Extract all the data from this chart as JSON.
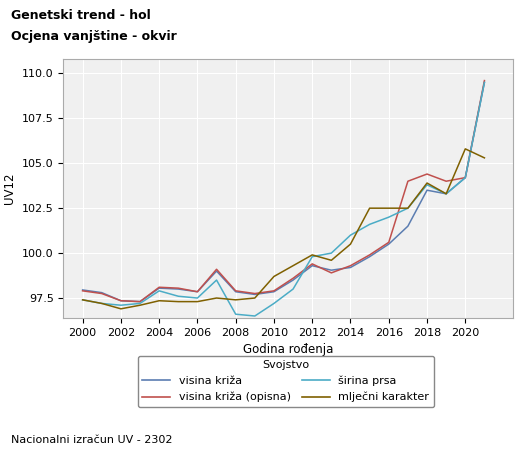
{
  "title_line1": "Genetski trend - hol",
  "title_line2": "Ocjena vanjštine - okvir",
  "xlabel": "Godina rođenja",
  "ylabel": "UV12",
  "footnote": "Nacionalni izračun UV - 2302",
  "legend_title": "Svojstvo",
  "xlim": [
    1999,
    2022.5
  ],
  "ylim": [
    96.4,
    110.8
  ],
  "yticks": [
    97.5,
    100.0,
    102.5,
    105.0,
    107.5,
    110.0
  ],
  "xticks": [
    2000,
    2002,
    2004,
    2006,
    2008,
    2010,
    2012,
    2014,
    2016,
    2018,
    2020
  ],
  "series": {
    "visina_kriza": {
      "label": "visina križa",
      "color": "#5B7DB1",
      "x": [
        2000,
        2001,
        2002,
        2003,
        2004,
        2005,
        2006,
        2007,
        2008,
        2009,
        2010,
        2011,
        2012,
        2013,
        2014,
        2015,
        2016,
        2017,
        2018,
        2019,
        2020,
        2021
      ],
      "y": [
        97.95,
        97.8,
        97.35,
        97.3,
        98.05,
        98.0,
        97.85,
        99.0,
        97.85,
        97.7,
        97.85,
        98.5,
        99.3,
        99.05,
        99.2,
        99.8,
        100.5,
        101.5,
        103.5,
        103.3,
        104.2,
        109.5
      ]
    },
    "visina_kriza_opisna": {
      "label": "visina križa (opisna)",
      "color": "#C0504D",
      "x": [
        2000,
        2001,
        2002,
        2003,
        2004,
        2005,
        2006,
        2007,
        2008,
        2009,
        2010,
        2011,
        2012,
        2013,
        2014,
        2015,
        2016,
        2017,
        2018,
        2019,
        2020,
        2021
      ],
      "y": [
        97.9,
        97.75,
        97.35,
        97.3,
        98.1,
        98.05,
        97.85,
        99.1,
        97.9,
        97.75,
        97.9,
        98.6,
        99.4,
        98.9,
        99.3,
        99.9,
        100.6,
        104.0,
        104.4,
        104.0,
        104.2,
        109.6
      ]
    },
    "sirina_prsa": {
      "label": "širina prsa",
      "color": "#4BACC6",
      "x": [
        2000,
        2001,
        2002,
        2003,
        2004,
        2005,
        2006,
        2007,
        2008,
        2009,
        2010,
        2011,
        2012,
        2013,
        2014,
        2015,
        2016,
        2017,
        2018,
        2019,
        2020,
        2021
      ],
      "y": [
        97.4,
        97.2,
        97.1,
        97.2,
        97.9,
        97.6,
        97.5,
        98.5,
        96.6,
        96.5,
        97.2,
        98.0,
        99.8,
        100.0,
        101.0,
        101.6,
        102.0,
        102.5,
        103.8,
        103.3,
        104.2,
        109.5
      ]
    },
    "mljecni_karakter": {
      "label": "mlječni karakter",
      "color": "#7F6000",
      "x": [
        2000,
        2001,
        2002,
        2003,
        2004,
        2005,
        2006,
        2007,
        2008,
        2009,
        2010,
        2011,
        2012,
        2013,
        2014,
        2015,
        2016,
        2017,
        2018,
        2019,
        2020,
        2021
      ],
      "y": [
        97.4,
        97.2,
        96.9,
        97.1,
        97.35,
        97.3,
        97.3,
        97.5,
        97.4,
        97.5,
        98.7,
        99.3,
        99.9,
        99.6,
        100.5,
        102.5,
        102.5,
        102.5,
        103.9,
        103.3,
        105.8,
        105.3
      ]
    }
  },
  "bg_color": "#FFFFFF",
  "plot_bg_color": "#F0F0F0",
  "grid_color": "#FFFFFF",
  "title_fontsize": 9,
  "label_fontsize": 8.5,
  "tick_fontsize": 8,
  "legend_fontsize": 8
}
